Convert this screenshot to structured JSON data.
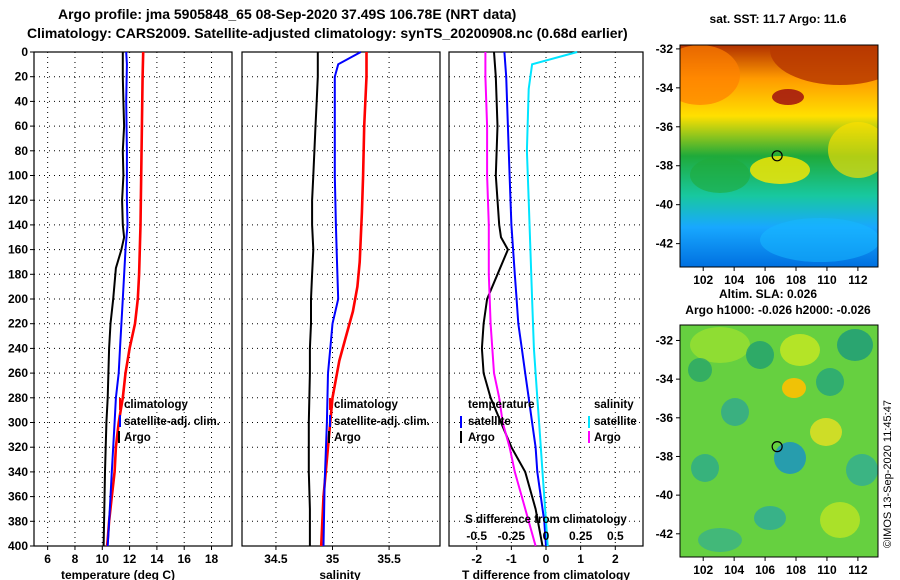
{
  "header": {
    "title_line1": "Argo profile: jma 5905848_65 08-Sep-2020 37.49S 106.78E (NRT data)",
    "title_line2": "Climatology: CARS2009. Satellite-adjusted climatology: synTS_20200908.nc (0.68d earlier)"
  },
  "colors": {
    "climatology": "#ff0000",
    "satellite": "#0000ff",
    "argo": "#000000",
    "salinity_satellite": "#00e5ff",
    "salinity_argo": "#ff00ff"
  },
  "chart_data": [
    {
      "id": "temperature",
      "type": "line",
      "xlabel": "temperature (deg C)",
      "ylabel": "",
      "xlim": [
        5,
        19.5
      ],
      "ylim": [
        400,
        0
      ],
      "xticks": [
        6,
        8,
        10,
        12,
        14,
        16,
        18
      ],
      "yticks": [
        0,
        20,
        40,
        60,
        80,
        100,
        120,
        140,
        160,
        180,
        200,
        220,
        240,
        260,
        280,
        300,
        320,
        340,
        360,
        380,
        400
      ],
      "legend": [
        "climatology",
        "satellite-adj. clim.",
        "Argo"
      ],
      "series": [
        {
          "name": "climatology",
          "color": "#ff0000",
          "x": [
            13.0,
            12.95,
            12.9,
            12.85,
            12.8,
            12.75,
            12.7,
            12.6,
            12.4,
            12.0,
            11.7,
            11.5,
            11.2,
            11.0,
            10.9,
            10.7,
            10.5,
            10.4,
            10.35
          ],
          "y": [
            0,
            20,
            60,
            100,
            140,
            160,
            180,
            200,
            220,
            240,
            260,
            280,
            300,
            320,
            340,
            360,
            380,
            395,
            400
          ]
        },
        {
          "name": "satellite-adj. clim.",
          "color": "#0000ff",
          "x": [
            11.75,
            11.8,
            11.75,
            11.8,
            11.8,
            11.85,
            11.7,
            11.5,
            11.4,
            11.3,
            11.2,
            11.0,
            10.9,
            10.8,
            10.7,
            10.6,
            10.5,
            10.4
          ],
          "y": [
            0,
            10,
            40,
            80,
            120,
            140,
            160,
            200,
            220,
            240,
            260,
            280,
            300,
            320,
            340,
            360,
            380,
            400
          ]
        },
        {
          "name": "Argo",
          "color": "#000000",
          "x": [
            11.5,
            11.5,
            11.55,
            11.6,
            11.5,
            11.55,
            11.45,
            11.5,
            11.6,
            11.4,
            11.0,
            10.8,
            10.6,
            10.5,
            10.45,
            10.4,
            10.3,
            10.25,
            10.2,
            10.15,
            10.1
          ],
          "y": [
            0,
            20,
            40,
            60,
            80,
            100,
            120,
            140,
            150,
            160,
            175,
            200,
            220,
            240,
            260,
            280,
            300,
            320,
            340,
            370,
            400
          ]
        }
      ]
    },
    {
      "id": "salinity",
      "type": "line",
      "xlabel": "salinity",
      "ylabel": "",
      "xlim": [
        34.2,
        35.95
      ],
      "ylim": [
        400,
        0
      ],
      "xticks": [
        34.5,
        35,
        35.5
      ],
      "legend": [
        "climatology",
        "satellite-adj. clim.",
        "Argo"
      ],
      "series": [
        {
          "name": "climatology",
          "color": "#ff0000",
          "x": [
            35.3,
            35.3,
            35.28,
            35.27,
            35.26,
            35.25,
            35.24,
            35.22,
            35.18,
            35.12,
            35.06,
            35.0,
            34.96,
            34.92,
            34.9
          ],
          "y": [
            0,
            20,
            60,
            100,
            130,
            150,
            170,
            190,
            210,
            230,
            250,
            280,
            320,
            360,
            400
          ]
        },
        {
          "name": "satellite-adj. clim.",
          "color": "#0000ff",
          "x": [
            35.25,
            35.05,
            35.02,
            35.02,
            35.02,
            35.03,
            35.04,
            35.05,
            35.0,
            34.98,
            34.96,
            34.95,
            34.93,
            34.92
          ],
          "y": [
            0,
            10,
            20,
            60,
            100,
            140,
            170,
            200,
            220,
            240,
            260,
            300,
            350,
            400
          ]
        },
        {
          "name": "Argo",
          "color": "#000000",
          "x": [
            34.87,
            34.87,
            34.86,
            34.85,
            34.84,
            34.83,
            34.82,
            34.82,
            34.83,
            34.82,
            34.81,
            34.81,
            34.8,
            34.8,
            34.79,
            34.79,
            34.8,
            34.8
          ],
          "y": [
            0,
            20,
            40,
            60,
            80,
            100,
            120,
            140,
            160,
            180,
            200,
            220,
            240,
            260,
            300,
            340,
            370,
            400
          ]
        }
      ]
    },
    {
      "id": "difference",
      "type": "line",
      "xlabel": "T difference from climatology",
      "xlabel_top": "S difference from climatology",
      "xlim": [
        -2.8,
        2.8
      ],
      "xticks": [
        -2,
        -1,
        0,
        1,
        2
      ],
      "xticks_s": [
        -0.5,
        -0.25,
        0,
        0.25,
        0.5
      ],
      "ylim": [
        400,
        0
      ],
      "legend_temperature": {
        "title": "temperature",
        "satellite": "satellite",
        "argo": "Argo"
      },
      "legend_salinity": {
        "title": "salinity",
        "satellite": "satellite",
        "argo": "Argo"
      },
      "series": [
        {
          "name": "temperature satellite",
          "color": "#0000ff",
          "x": [
            -1.2,
            -1.15,
            -1.1,
            -1.05,
            -1.0,
            -0.95,
            -0.9,
            -0.85,
            -0.8,
            -0.7,
            -0.6,
            -0.5,
            -0.4,
            -0.3,
            -0.25,
            -0.15,
            -0.05,
            0.0
          ],
          "y": [
            0,
            20,
            60,
            100,
            140,
            160,
            180,
            200,
            220,
            240,
            260,
            280,
            300,
            320,
            340,
            360,
            380,
            400
          ]
        },
        {
          "name": "temperature Argo",
          "color": "#000000",
          "x": [
            -1.5,
            -1.45,
            -1.4,
            -1.45,
            -1.35,
            -1.3,
            -1.1,
            -1.4,
            -1.7,
            -1.8,
            -1.85,
            -1.8,
            -1.6,
            -1.3,
            -1.0,
            -0.6,
            -0.3,
            -0.1
          ],
          "y": [
            0,
            20,
            60,
            100,
            140,
            150,
            160,
            180,
            200,
            220,
            240,
            260,
            280,
            300,
            320,
            340,
            370,
            400
          ]
        },
        {
          "name": "salinity satellite",
          "color": "#00e5ff",
          "x": [
            0.9,
            -0.4,
            -0.5,
            -0.55,
            -0.5,
            -0.45,
            -0.4,
            -0.35,
            -0.3,
            -0.25,
            -0.2,
            -0.1,
            0.0,
            0.05
          ],
          "y": [
            0,
            10,
            30,
            80,
            120,
            160,
            200,
            240,
            260,
            280,
            300,
            340,
            380,
            400
          ]
        },
        {
          "name": "salinity Argo",
          "color": "#ff00ff",
          "x": [
            -1.75,
            -1.75,
            -1.7,
            -1.7,
            -1.65,
            -1.65,
            -1.6,
            -1.5,
            -1.35,
            -1.25,
            -1.05,
            -0.9,
            -0.7,
            -0.3
          ],
          "y": [
            0,
            20,
            60,
            100,
            140,
            180,
            220,
            260,
            280,
            300,
            320,
            340,
            360,
            400
          ]
        }
      ]
    },
    {
      "id": "sst_map",
      "type": "heatmap",
      "title": "sat. SST: 11.7 Argo: 11.6",
      "xticks": [
        102,
        104,
        106,
        108,
        110,
        112
      ],
      "yticks": [
        -32,
        -34,
        -36,
        -38,
        -40,
        -42
      ],
      "xlim": [
        100.5,
        113.3
      ],
      "ylim": [
        -43.2,
        -31.8
      ],
      "marker": {
        "lon": 106.78,
        "lat": -37.49
      }
    },
    {
      "id": "sla_map",
      "type": "heatmap",
      "title": "Altim. SLA: 0.026",
      "subtitle": "Argo h1000: -0.026 h2000: -0.026",
      "xticks": [
        102,
        104,
        106,
        108,
        110,
        112
      ],
      "yticks": [
        -32,
        -34,
        -36,
        -38,
        -40,
        -42
      ],
      "xlim": [
        100.5,
        113.3
      ],
      "ylim": [
        -43.2,
        -31.2
      ],
      "marker": {
        "lon": 106.78,
        "lat": -37.49
      }
    }
  ],
  "footer": {
    "stamp": "©IMOS 13-Sep-2020 11:45:47"
  }
}
